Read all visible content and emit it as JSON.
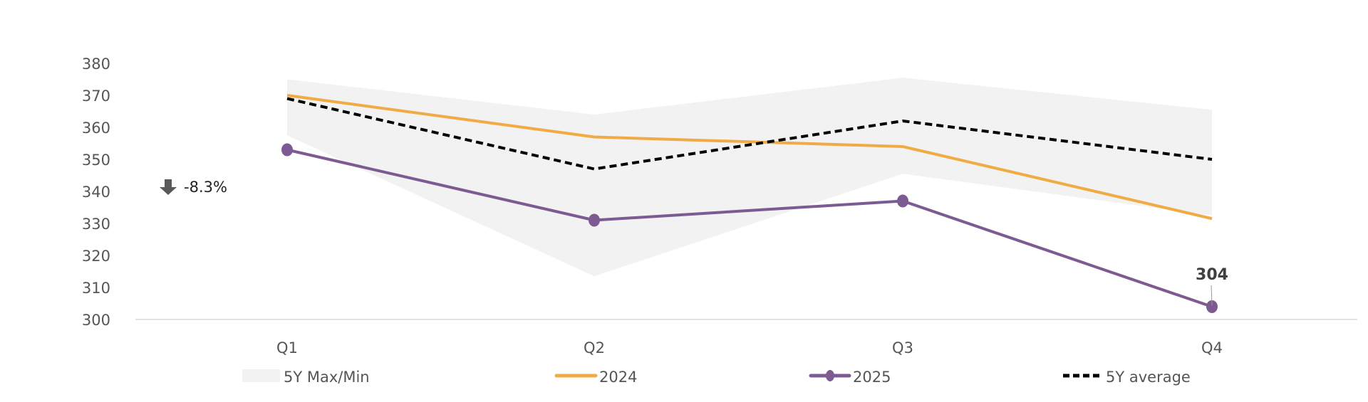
{
  "chart_data": {
    "type": "line",
    "title": "",
    "xlabel": "",
    "ylabel": "",
    "categories": [
      "Q1",
      "Q2",
      "Q3",
      "Q4"
    ],
    "ylim": [
      300,
      380
    ],
    "yticks": [
      300,
      310,
      320,
      330,
      340,
      350,
      360,
      370,
      380
    ],
    "grid": false,
    "legend_position": "bottom",
    "band": {
      "name": "5Y Max/Min",
      "max": [
        375,
        364,
        375.5,
        365.5
      ],
      "min": [
        357.5,
        313.5,
        345.5,
        332.5
      ],
      "color": "#f2f2f2"
    },
    "series": [
      {
        "name": "2024",
        "values": [
          370,
          357,
          354,
          331.5
        ],
        "color": "#f0ab45",
        "style": "solid",
        "markers": false
      },
      {
        "name": "2025",
        "values": [
          353,
          331,
          337,
          304
        ],
        "color": "#7e5a92",
        "style": "solid",
        "markers": true
      },
      {
        "name": "5Y average",
        "values": [
          369,
          347,
          362,
          350
        ],
        "color": "#000000",
        "style": "dashed",
        "markers": false
      }
    ],
    "annotations": [
      {
        "text": "304",
        "category": "Q4",
        "series": "2025"
      },
      {
        "text": "-8.3%",
        "icon": "arrow-down-icon"
      }
    ]
  }
}
